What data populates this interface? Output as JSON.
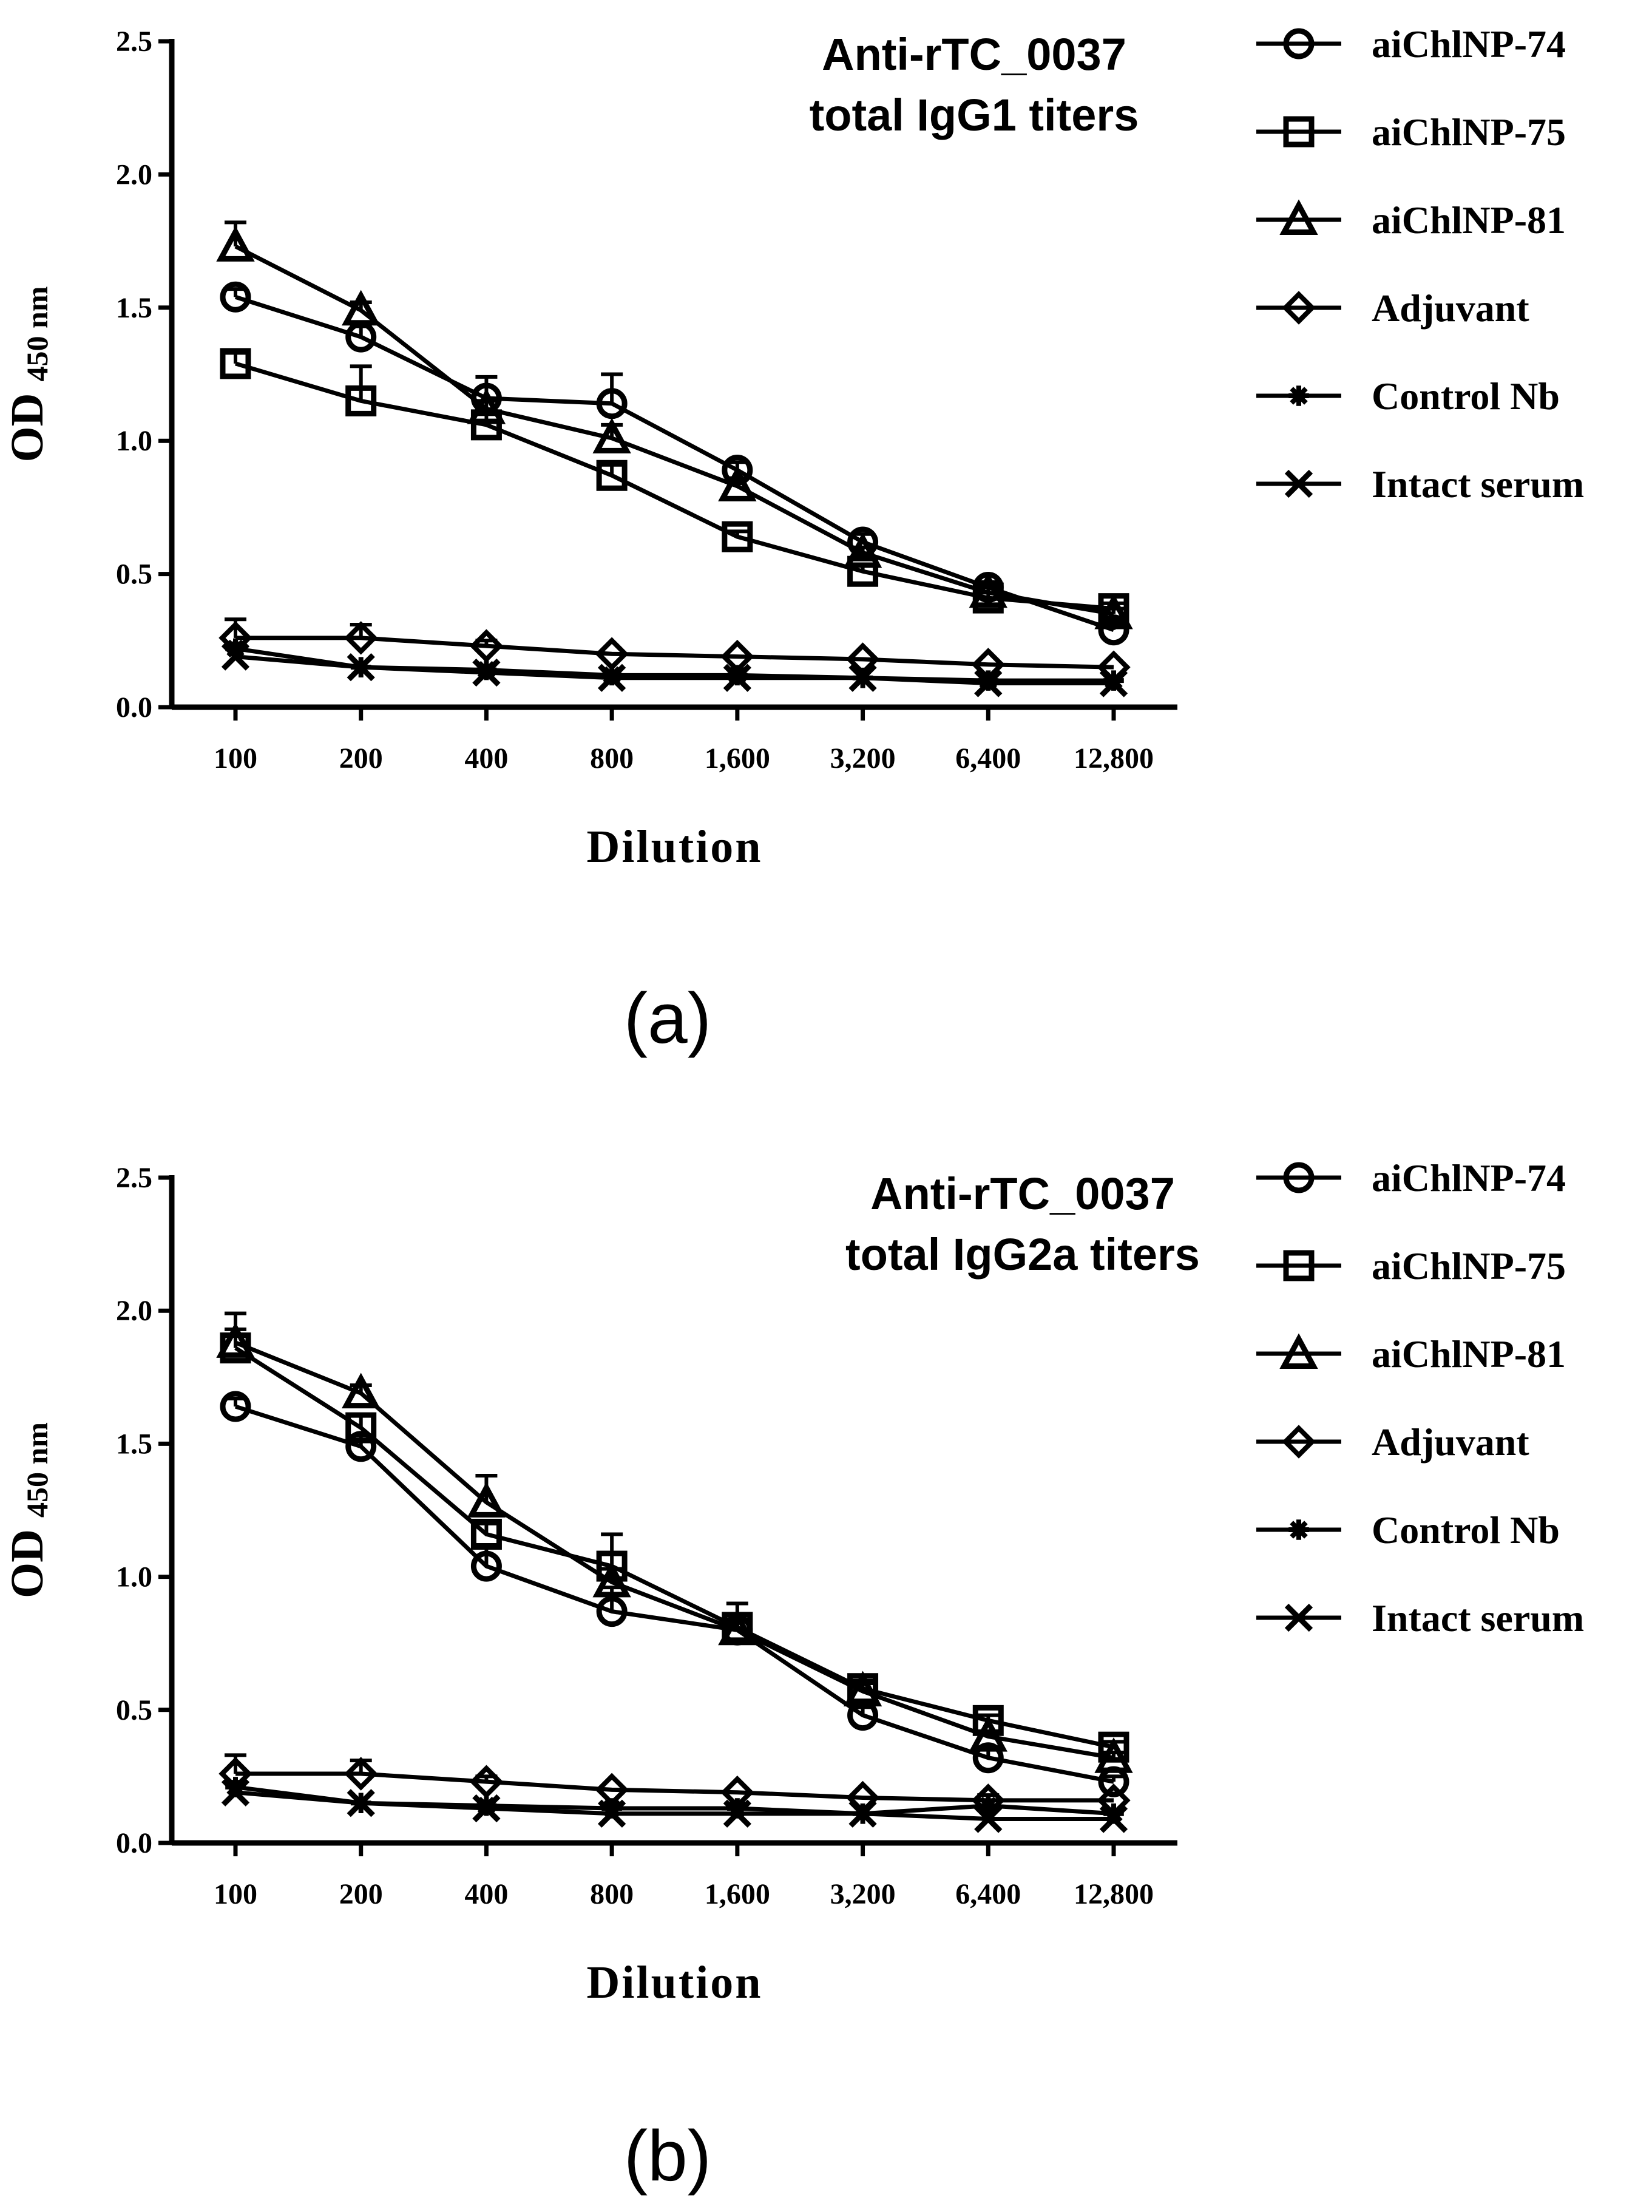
{
  "chart_data": [
    {
      "type": "line",
      "panel_label": "(a)",
      "title_lines": [
        "Anti-rTC_0037",
        "total IgG1 titers"
      ],
      "xlabel": "Dilution",
      "ylabel_main": "OD",
      "ylabel_sub": "450 nm",
      "categories": [
        "100",
        "200",
        "400",
        "800",
        "1,600",
        "3,200",
        "6,400",
        "12,800"
      ],
      "ylim": [
        0,
        2.5
      ],
      "yticks": [
        "0.0",
        "0.5",
        "1.0",
        "1.5",
        "2.0",
        "2.5"
      ],
      "legend_position": "right",
      "series": [
        {
          "name": "aiChlNP-74",
          "marker": "circle",
          "values": [
            1.54,
            1.39,
            1.16,
            1.14,
            0.89,
            0.62,
            0.45,
            0.29
          ],
          "errors": [
            0.03,
            0.04,
            0.08,
            0.11,
            0.03,
            0.03,
            0.02,
            0.02
          ]
        },
        {
          "name": "aiChlNP-75",
          "marker": "square",
          "values": [
            1.29,
            1.15,
            1.06,
            0.87,
            0.64,
            0.51,
            0.41,
            0.37
          ],
          "errors": [
            0.04,
            0.13,
            0.04,
            0.04,
            0.02,
            0.02,
            0.02,
            0.02
          ]
        },
        {
          "name": "aiChlNP-81",
          "marker": "triangle",
          "values": [
            1.73,
            1.49,
            1.12,
            1.01,
            0.83,
            0.58,
            0.43,
            0.35
          ],
          "errors": [
            0.09,
            0.03,
            0.03,
            0.05,
            0.03,
            0.02,
            0.02,
            0.02
          ]
        },
        {
          "name": "Adjuvant",
          "marker": "diamond",
          "values": [
            0.26,
            0.26,
            0.23,
            0.2,
            0.19,
            0.18,
            0.16,
            0.15
          ],
          "errors": [
            0.07,
            0.05,
            0.02,
            0.01,
            0.01,
            0.01,
            0.01,
            0.01
          ]
        },
        {
          "name": "Control Nb",
          "marker": "asterisk",
          "values": [
            0.22,
            0.15,
            0.14,
            0.12,
            0.12,
            0.11,
            0.1,
            0.1
          ],
          "errors": [
            0.02,
            0.01,
            0.01,
            0.01,
            0.01,
            0.01,
            0.01,
            0.01
          ]
        },
        {
          "name": "Intact serum",
          "marker": "cross",
          "values": [
            0.19,
            0.15,
            0.13,
            0.11,
            0.11,
            0.11,
            0.09,
            0.09
          ],
          "errors": [
            0.01,
            0.01,
            0.01,
            0.01,
            0.01,
            0.01,
            0.01,
            0.01
          ]
        }
      ]
    },
    {
      "type": "line",
      "panel_label": "(b)",
      "title_lines": [
        "Anti-rTC_0037",
        "total IgG2a titers"
      ],
      "xlabel": "Dilution",
      "ylabel_main": "OD",
      "ylabel_sub": "450 nm",
      "categories": [
        "100",
        "200",
        "400",
        "800",
        "1,600",
        "3,200",
        "6,400",
        "12,800"
      ],
      "ylim": [
        0,
        2.5
      ],
      "yticks": [
        "0.0",
        "0.5",
        "1.0",
        "1.5",
        "2.0",
        "2.5"
      ],
      "legend_position": "right",
      "series": [
        {
          "name": "aiChlNP-74",
          "marker": "circle",
          "values": [
            1.64,
            1.49,
            1.04,
            0.87,
            0.8,
            0.48,
            0.32,
            0.23
          ],
          "errors": [
            0.03,
            0.04,
            0.08,
            0.09,
            0.04,
            0.03,
            0.04,
            0.02
          ]
        },
        {
          "name": "aiChlNP-75",
          "marker": "square",
          "values": [
            1.86,
            1.56,
            1.16,
            1.04,
            0.81,
            0.58,
            0.46,
            0.36
          ],
          "errors": [
            0.13,
            0.05,
            0.04,
            0.12,
            0.09,
            0.03,
            0.02,
            0.02
          ]
        },
        {
          "name": "aiChlNP-81",
          "marker": "triangle",
          "values": [
            1.88,
            1.69,
            1.28,
            0.98,
            0.8,
            0.57,
            0.4,
            0.32
          ],
          "errors": [
            0.05,
            0.03,
            0.1,
            0.05,
            0.04,
            0.03,
            0.02,
            0.02
          ]
        },
        {
          "name": "Adjuvant",
          "marker": "diamond",
          "values": [
            0.26,
            0.26,
            0.23,
            0.2,
            0.19,
            0.17,
            0.16,
            0.16
          ],
          "errors": [
            0.07,
            0.05,
            0.02,
            0.01,
            0.01,
            0.01,
            0.01,
            0.01
          ]
        },
        {
          "name": "Control Nb",
          "marker": "asterisk",
          "values": [
            0.21,
            0.15,
            0.14,
            0.13,
            0.13,
            0.11,
            0.14,
            0.11
          ],
          "errors": [
            0.02,
            0.01,
            0.01,
            0.01,
            0.01,
            0.01,
            0.04,
            0.01
          ]
        },
        {
          "name": "Intact serum",
          "marker": "cross",
          "values": [
            0.19,
            0.15,
            0.13,
            0.11,
            0.11,
            0.11,
            0.09,
            0.09
          ],
          "errors": [
            0.01,
            0.01,
            0.01,
            0.01,
            0.01,
            0.01,
            0.01,
            0.01
          ]
        }
      ]
    }
  ]
}
